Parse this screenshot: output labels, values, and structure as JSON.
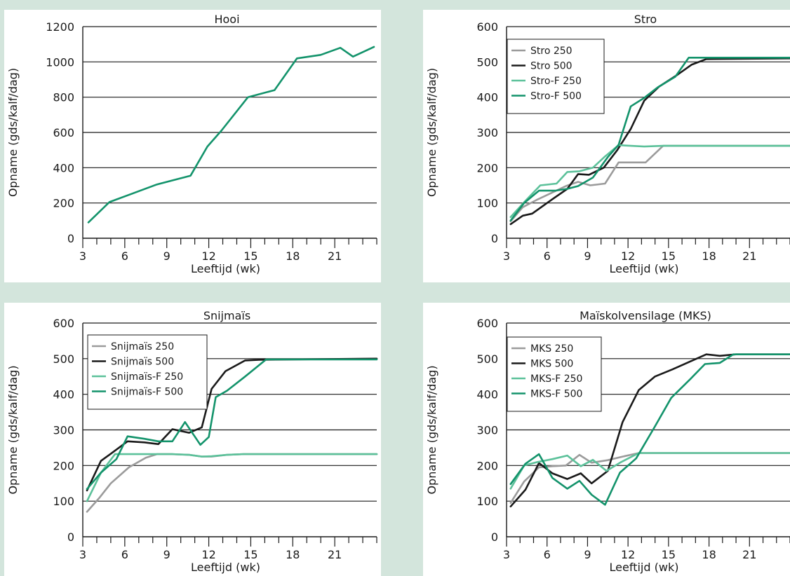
{
  "colors": {
    "background": "#d3e5dc",
    "grey": "#9b9b9b",
    "black": "#1a1a1a",
    "lightgreen": "#5cc19a",
    "green": "#13936b"
  },
  "chart_data": [
    {
      "type": "line",
      "title": "Hooi",
      "xlabel": "Leeftijd (wk)",
      "ylabel": "Opname (gds/kalf/dag)",
      "xlim": [
        3,
        24
      ],
      "ylim": [
        0,
        1200
      ],
      "xticks": [
        3,
        6,
        9,
        12,
        15,
        18,
        21
      ],
      "yticks": [
        0,
        200,
        400,
        600,
        800,
        1000,
        1200
      ],
      "grid": "horizontal",
      "legend": "none",
      "series": [
        {
          "color": "#13936b",
          "x": [
            3.4,
            4.9,
            6.6,
            8.3,
            10.7,
            11.9,
            12.9,
            14.8,
            16.7,
            18.3,
            20.0,
            21.4,
            22.3,
            23.8
          ],
          "y": [
            90,
            205,
            255,
            305,
            355,
            520,
            610,
            800,
            840,
            1020,
            1040,
            1080,
            1030,
            1085
          ]
        }
      ]
    },
    {
      "type": "line",
      "title": "Stro",
      "xlabel": "Leeftijd (wk)",
      "ylabel": "Opname (gds/kalf/dag)",
      "xlim": [
        3,
        24
      ],
      "ylim": [
        0,
        600
      ],
      "xticks": [
        3,
        6,
        9,
        12,
        15,
        18,
        21
      ],
      "yticks": [
        0,
        100,
        200,
        300,
        400,
        500,
        600
      ],
      "grid": "horizontal",
      "legend": "top-left",
      "series": [
        {
          "name": "Stro 250",
          "color": "#9b9b9b",
          "x": [
            3.3,
            4.2,
            5.2,
            6.3,
            7.4,
            8.3,
            9.2,
            10.3,
            11.3,
            12.2,
            13.3,
            14.6,
            16.0,
            17.5,
            19.0,
            21.0,
            24.0
          ],
          "y": [
            48,
            88,
            108,
            128,
            148,
            160,
            150,
            155,
            215,
            215,
            215,
            262,
            262,
            262,
            262,
            262,
            262
          ]
        },
        {
          "name": "Stro 500",
          "color": "#1a1a1a",
          "x": [
            3.3,
            4.2,
            4.9,
            6.3,
            7.5,
            8.3,
            9.1,
            10.2,
            11.2,
            12.2,
            13.2,
            14.3,
            15.6,
            16.7,
            17.8,
            24.0
          ],
          "y": [
            40,
            64,
            70,
            108,
            140,
            182,
            180,
            200,
            250,
            310,
            390,
            430,
            462,
            492,
            508,
            510
          ]
        },
        {
          "name": "Stro-F 250",
          "color": "#5cc19a",
          "x": [
            3.3,
            4.3,
            5.5,
            6.7,
            7.5,
            8.4,
            9.4,
            10.3,
            11.3,
            12.2,
            13.2,
            14.6,
            16.0,
            17.5,
            19.0,
            24.0
          ],
          "y": [
            60,
            102,
            150,
            155,
            188,
            190,
            200,
            232,
            264,
            262,
            260,
            262,
            262,
            262,
            262,
            262
          ]
        },
        {
          "name": "Stro-F 500",
          "color": "#13936b",
          "x": [
            3.3,
            4.3,
            5.4,
            6.6,
            7.5,
            8.3,
            9.4,
            10.5,
            11.3,
            12.2,
            13.2,
            14.2,
            15.5,
            16.5,
            17.8,
            24.0
          ],
          "y": [
            50,
            100,
            135,
            135,
            140,
            148,
            172,
            230,
            265,
            374,
            398,
            428,
            458,
            512,
            512,
            512
          ]
        }
      ]
    },
    {
      "type": "line",
      "title": "Snijmaïs",
      "xlabel": "Leeftijd (wk)",
      "ylabel": "Opname (gds/kalf/dag)",
      "xlim": [
        3,
        24
      ],
      "ylim": [
        0,
        600
      ],
      "xticks": [
        3,
        6,
        9,
        12,
        15,
        18,
        21
      ],
      "yticks": [
        0,
        100,
        200,
        300,
        400,
        500,
        600
      ],
      "grid": "horizontal",
      "legend": "top-left",
      "series": [
        {
          "name": "Snijmaïs 250",
          "color": "#9b9b9b",
          "x": [
            3.3,
            4.2,
            5.0,
            6.3,
            7.5,
            8.3,
            9.3,
            10.6,
            11.5,
            12.2,
            13.3,
            14.5,
            16.0,
            18.0,
            21.0,
            24.0
          ],
          "y": [
            70,
            110,
            150,
            195,
            222,
            232,
            232,
            230,
            225,
            225,
            230,
            232,
            232,
            232,
            232,
            232
          ]
        },
        {
          "name": "Snijmaïs 500",
          "color": "#1a1a1a",
          "x": [
            3.3,
            4.3,
            5.0,
            6.2,
            7.4,
            8.4,
            9.4,
            10.6,
            11.5,
            12.2,
            13.2,
            14.6,
            15.6,
            18.0,
            24.0
          ],
          "y": [
            130,
            213,
            233,
            268,
            265,
            260,
            302,
            292,
            307,
            415,
            465,
            495,
            497,
            498,
            500
          ]
        },
        {
          "name": "Snijmaïs-F 250",
          "color": "#5cc19a",
          "x": [
            3.3,
            4.3,
            5.3,
            6.4,
            7.5,
            8.4,
            9.4,
            10.6,
            11.5,
            12.2,
            13.3,
            14.5,
            16.0,
            18.0,
            21.0,
            24.0
          ],
          "y": [
            100,
            180,
            232,
            232,
            232,
            232,
            232,
            230,
            225,
            226,
            230,
            232,
            232,
            232,
            232,
            232
          ]
        },
        {
          "name": "Snijmaïs-F 500",
          "color": "#13936b",
          "x": [
            3.3,
            4.3,
            5.4,
            6.2,
            7.4,
            8.4,
            9.4,
            10.3,
            11.4,
            12.0,
            12.5,
            13.3,
            14.6,
            16.1,
            18.0,
            24.0
          ],
          "y": [
            134,
            180,
            218,
            282,
            275,
            268,
            268,
            322,
            258,
            280,
            392,
            410,
            450,
            498,
            498,
            498
          ]
        }
      ]
    },
    {
      "type": "line",
      "title": "Maïskolvensilage (MKS)",
      "xlabel": "Leeftijd (wk)",
      "ylabel": "Opname (gds/kalf/dag)",
      "xlim": [
        3,
        24
      ],
      "ylim": [
        0,
        600
      ],
      "xticks": [
        3,
        6,
        9,
        12,
        15,
        18,
        21
      ],
      "yticks": [
        0,
        100,
        200,
        300,
        400,
        500,
        600
      ],
      "grid": "horizontal",
      "legend": "top-left",
      "series": [
        {
          "name": "MKS 250",
          "color": "#9b9b9b",
          "x": [
            3.3,
            4.3,
            5.4,
            6.4,
            7.4,
            8.4,
            9.3,
            10.5,
            11.6,
            12.8,
            14.0,
            16.0,
            18.0,
            21.0,
            24.0
          ],
          "y": [
            95,
            155,
            195,
            198,
            200,
            230,
            208,
            215,
            225,
            235,
            235,
            235,
            235,
            235,
            235
          ]
        },
        {
          "name": "MKS 500",
          "color": "#1a1a1a",
          "x": [
            3.3,
            4.4,
            5.4,
            6.4,
            7.5,
            8.5,
            9.3,
            10.5,
            11.6,
            12.8,
            14.0,
            15.3,
            16.6,
            17.8,
            18.8,
            20.0,
            24.0
          ],
          "y": [
            85,
            132,
            207,
            178,
            162,
            178,
            150,
            185,
            322,
            412,
            450,
            470,
            492,
            512,
            508,
            512,
            512
          ]
        },
        {
          "name": "MKS-F 250",
          "color": "#5cc19a",
          "x": [
            3.3,
            4.3,
            5.3,
            6.4,
            7.5,
            8.5,
            9.4,
            10.4,
            11.5,
            12.8,
            14.0,
            16.0,
            18.0,
            21.0,
            24.0
          ],
          "y": [
            135,
            200,
            210,
            218,
            228,
            198,
            216,
            185,
            210,
            235,
            235,
            235,
            235,
            235,
            235
          ]
        },
        {
          "name": "MKS-F 500",
          "color": "#13936b",
          "x": [
            3.3,
            4.4,
            5.4,
            6.4,
            7.5,
            8.4,
            9.3,
            10.3,
            11.4,
            12.6,
            14.0,
            15.2,
            16.6,
            17.7,
            18.8,
            19.8,
            24.0
          ],
          "y": [
            148,
            205,
            232,
            165,
            135,
            157,
            118,
            90,
            180,
            220,
            310,
            390,
            442,
            485,
            488,
            512,
            512
          ]
        }
      ]
    }
  ]
}
